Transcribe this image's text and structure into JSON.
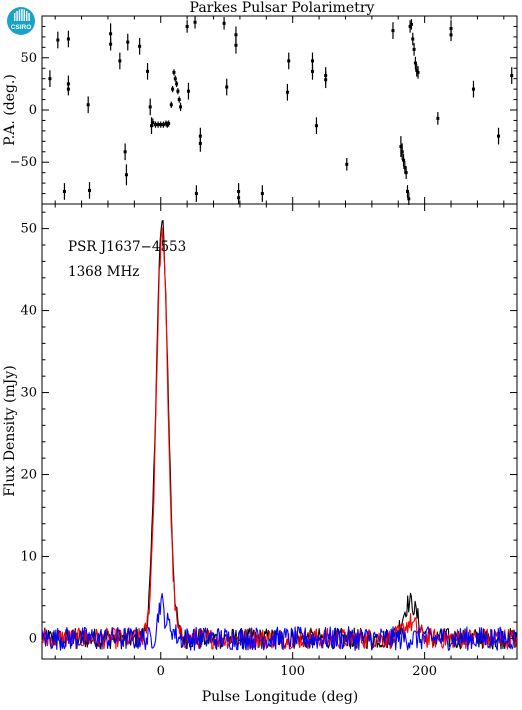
{
  "chart_data": [
    {
      "panel": "position-angle",
      "type": "scatter",
      "title": "Parkes Pulsar Polarimetry",
      "xlabel": "",
      "ylabel": "P.A. (deg.)",
      "xlim": [
        -90,
        270
      ],
      "ylim": [
        -90,
        90
      ],
      "yticks": [
        -50,
        0,
        50
      ],
      "xticks": [
        0,
        100,
        200
      ],
      "points": [
        {
          "x": -84,
          "y": 30,
          "err": 8
        },
        {
          "x": -78,
          "y": 67,
          "err": 8
        },
        {
          "x": -73,
          "y": -78,
          "err": 8
        },
        {
          "x": -70,
          "y": 68,
          "err": 8
        },
        {
          "x": -70,
          "y": 25,
          "err": 8
        },
        {
          "x": -70,
          "y": 20,
          "err": 6
        },
        {
          "x": -55,
          "y": 5,
          "err": 8
        },
        {
          "x": -54,
          "y": -77,
          "err": 8
        },
        {
          "x": -38,
          "y": 73,
          "err": 10
        },
        {
          "x": -38,
          "y": 63,
          "err": 6
        },
        {
          "x": -31,
          "y": 47,
          "err": 8
        },
        {
          "x": -27,
          "y": -40,
          "err": 8
        },
        {
          "x": -26,
          "y": -62,
          "err": 10
        },
        {
          "x": -25,
          "y": 65,
          "err": 8
        },
        {
          "x": -16,
          "y": 61,
          "err": 8
        },
        {
          "x": -10,
          "y": 37,
          "err": 8
        },
        {
          "x": -8,
          "y": 3,
          "err": 8
        },
        {
          "x": -7,
          "y": -15,
          "err": 8
        },
        {
          "x": -6,
          "y": -12,
          "err": 4
        },
        {
          "x": -4,
          "y": -14,
          "err": 3
        },
        {
          "x": -2,
          "y": -14,
          "err": 3
        },
        {
          "x": 0,
          "y": -14,
          "err": 3
        },
        {
          "x": 2,
          "y": -14,
          "err": 3
        },
        {
          "x": 4,
          "y": -13,
          "err": 3
        },
        {
          "x": 5,
          "y": -14,
          "err": 3
        },
        {
          "x": 6,
          "y": -13,
          "err": 3
        },
        {
          "x": 8,
          "y": 5,
          "err": 3
        },
        {
          "x": 9,
          "y": 20,
          "err": 3
        },
        {
          "x": 10,
          "y": 36,
          "err": 3
        },
        {
          "x": 11,
          "y": 30,
          "err": 3
        },
        {
          "x": 12,
          "y": 25,
          "err": 3
        },
        {
          "x": 13,
          "y": 18,
          "err": 3
        },
        {
          "x": 14,
          "y": 10,
          "err": 3
        },
        {
          "x": 15,
          "y": 3,
          "err": 4
        },
        {
          "x": 20,
          "y": 80,
          "err": 6
        },
        {
          "x": 21,
          "y": 18,
          "err": 8
        },
        {
          "x": 26,
          "y": 84,
          "err": 6
        },
        {
          "x": 27,
          "y": -80,
          "err": 8
        },
        {
          "x": 30,
          "y": -25,
          "err": 8
        },
        {
          "x": 30,
          "y": -32,
          "err": 8
        },
        {
          "x": 48,
          "y": 83,
          "err": 6
        },
        {
          "x": 50,
          "y": 22,
          "err": 8
        },
        {
          "x": 57,
          "y": 72,
          "err": 8
        },
        {
          "x": 57,
          "y": 62,
          "err": 8
        },
        {
          "x": 59,
          "y": -78,
          "err": 8
        },
        {
          "x": 59,
          "y": -84,
          "err": 6
        },
        {
          "x": 77,
          "y": -80,
          "err": 8
        },
        {
          "x": 97,
          "y": 47,
          "err": 8
        },
        {
          "x": 96,
          "y": 17,
          "err": 8
        },
        {
          "x": 115,
          "y": 47,
          "err": 8
        },
        {
          "x": 115,
          "y": 37,
          "err": 8
        },
        {
          "x": 118,
          "y": -15,
          "err": 8
        },
        {
          "x": 125,
          "y": 33,
          "err": 8
        },
        {
          "x": 125,
          "y": 29,
          "err": 8
        },
        {
          "x": 141,
          "y": -52,
          "err": 6
        },
        {
          "x": 176,
          "y": 76,
          "err": 8
        },
        {
          "x": 182,
          "y": -35,
          "err": 10
        },
        {
          "x": 183,
          "y": -40,
          "err": 8
        },
        {
          "x": 184,
          "y": -48,
          "err": 6
        },
        {
          "x": 185,
          "y": -55,
          "err": 6
        },
        {
          "x": 186,
          "y": -60,
          "err": 6
        },
        {
          "x": 187,
          "y": -78,
          "err": 6
        },
        {
          "x": 188,
          "y": -85,
          "err": 6
        },
        {
          "x": 189,
          "y": 80,
          "err": 6
        },
        {
          "x": 190,
          "y": 82,
          "err": 5
        },
        {
          "x": 191,
          "y": 68,
          "err": 6
        },
        {
          "x": 192,
          "y": 58,
          "err": 6
        },
        {
          "x": 193,
          "y": 45,
          "err": 6
        },
        {
          "x": 194,
          "y": 38,
          "err": 6
        },
        {
          "x": 195,
          "y": 36,
          "err": 6
        },
        {
          "x": 210,
          "y": -8,
          "err": 6
        },
        {
          "x": 220,
          "y": 78,
          "err": 8
        },
        {
          "x": 220,
          "y": 72,
          "err": 6
        },
        {
          "x": 237,
          "y": 20,
          "err": 8
        },
        {
          "x": 256,
          "y": -25,
          "err": 8
        },
        {
          "x": 266,
          "y": 33,
          "err": 8
        }
      ]
    },
    {
      "panel": "profile",
      "type": "line",
      "title": "",
      "xlabel": "Pulse Longitude (deg)",
      "ylabel": "Flux Density (mJy)",
      "xlim": [
        -90,
        270
      ],
      "ylim": [
        -2.5,
        53
      ],
      "xticks": [
        0,
        100,
        200
      ],
      "yticks": [
        0,
        10,
        20,
        30,
        40,
        50
      ],
      "annotations": [
        "PSR J1637−4553",
        "1368 MHz"
      ],
      "series": [
        {
          "color": "#000000",
          "noise": 0.8,
          "peaks": [
            [
              1,
              50.5,
              4.6
            ],
            [
              189,
              4.4,
              5.5
            ]
          ]
        },
        {
          "color": "#ff0000",
          "noise": 0.8,
          "peaks": [
            [
              1,
              49.2,
              4.4
            ],
            [
              189,
              1.9,
              5
            ]
          ]
        },
        {
          "color": "#0000ff",
          "noise": 0.9,
          "peaks": [
            [
              0,
              4.1,
              2.2
            ],
            [
              6,
              1.6,
              3.5
            ]
          ]
        }
      ]
    }
  ],
  "logo": {
    "text": "CSIRO",
    "color": "#1aa3c9"
  }
}
